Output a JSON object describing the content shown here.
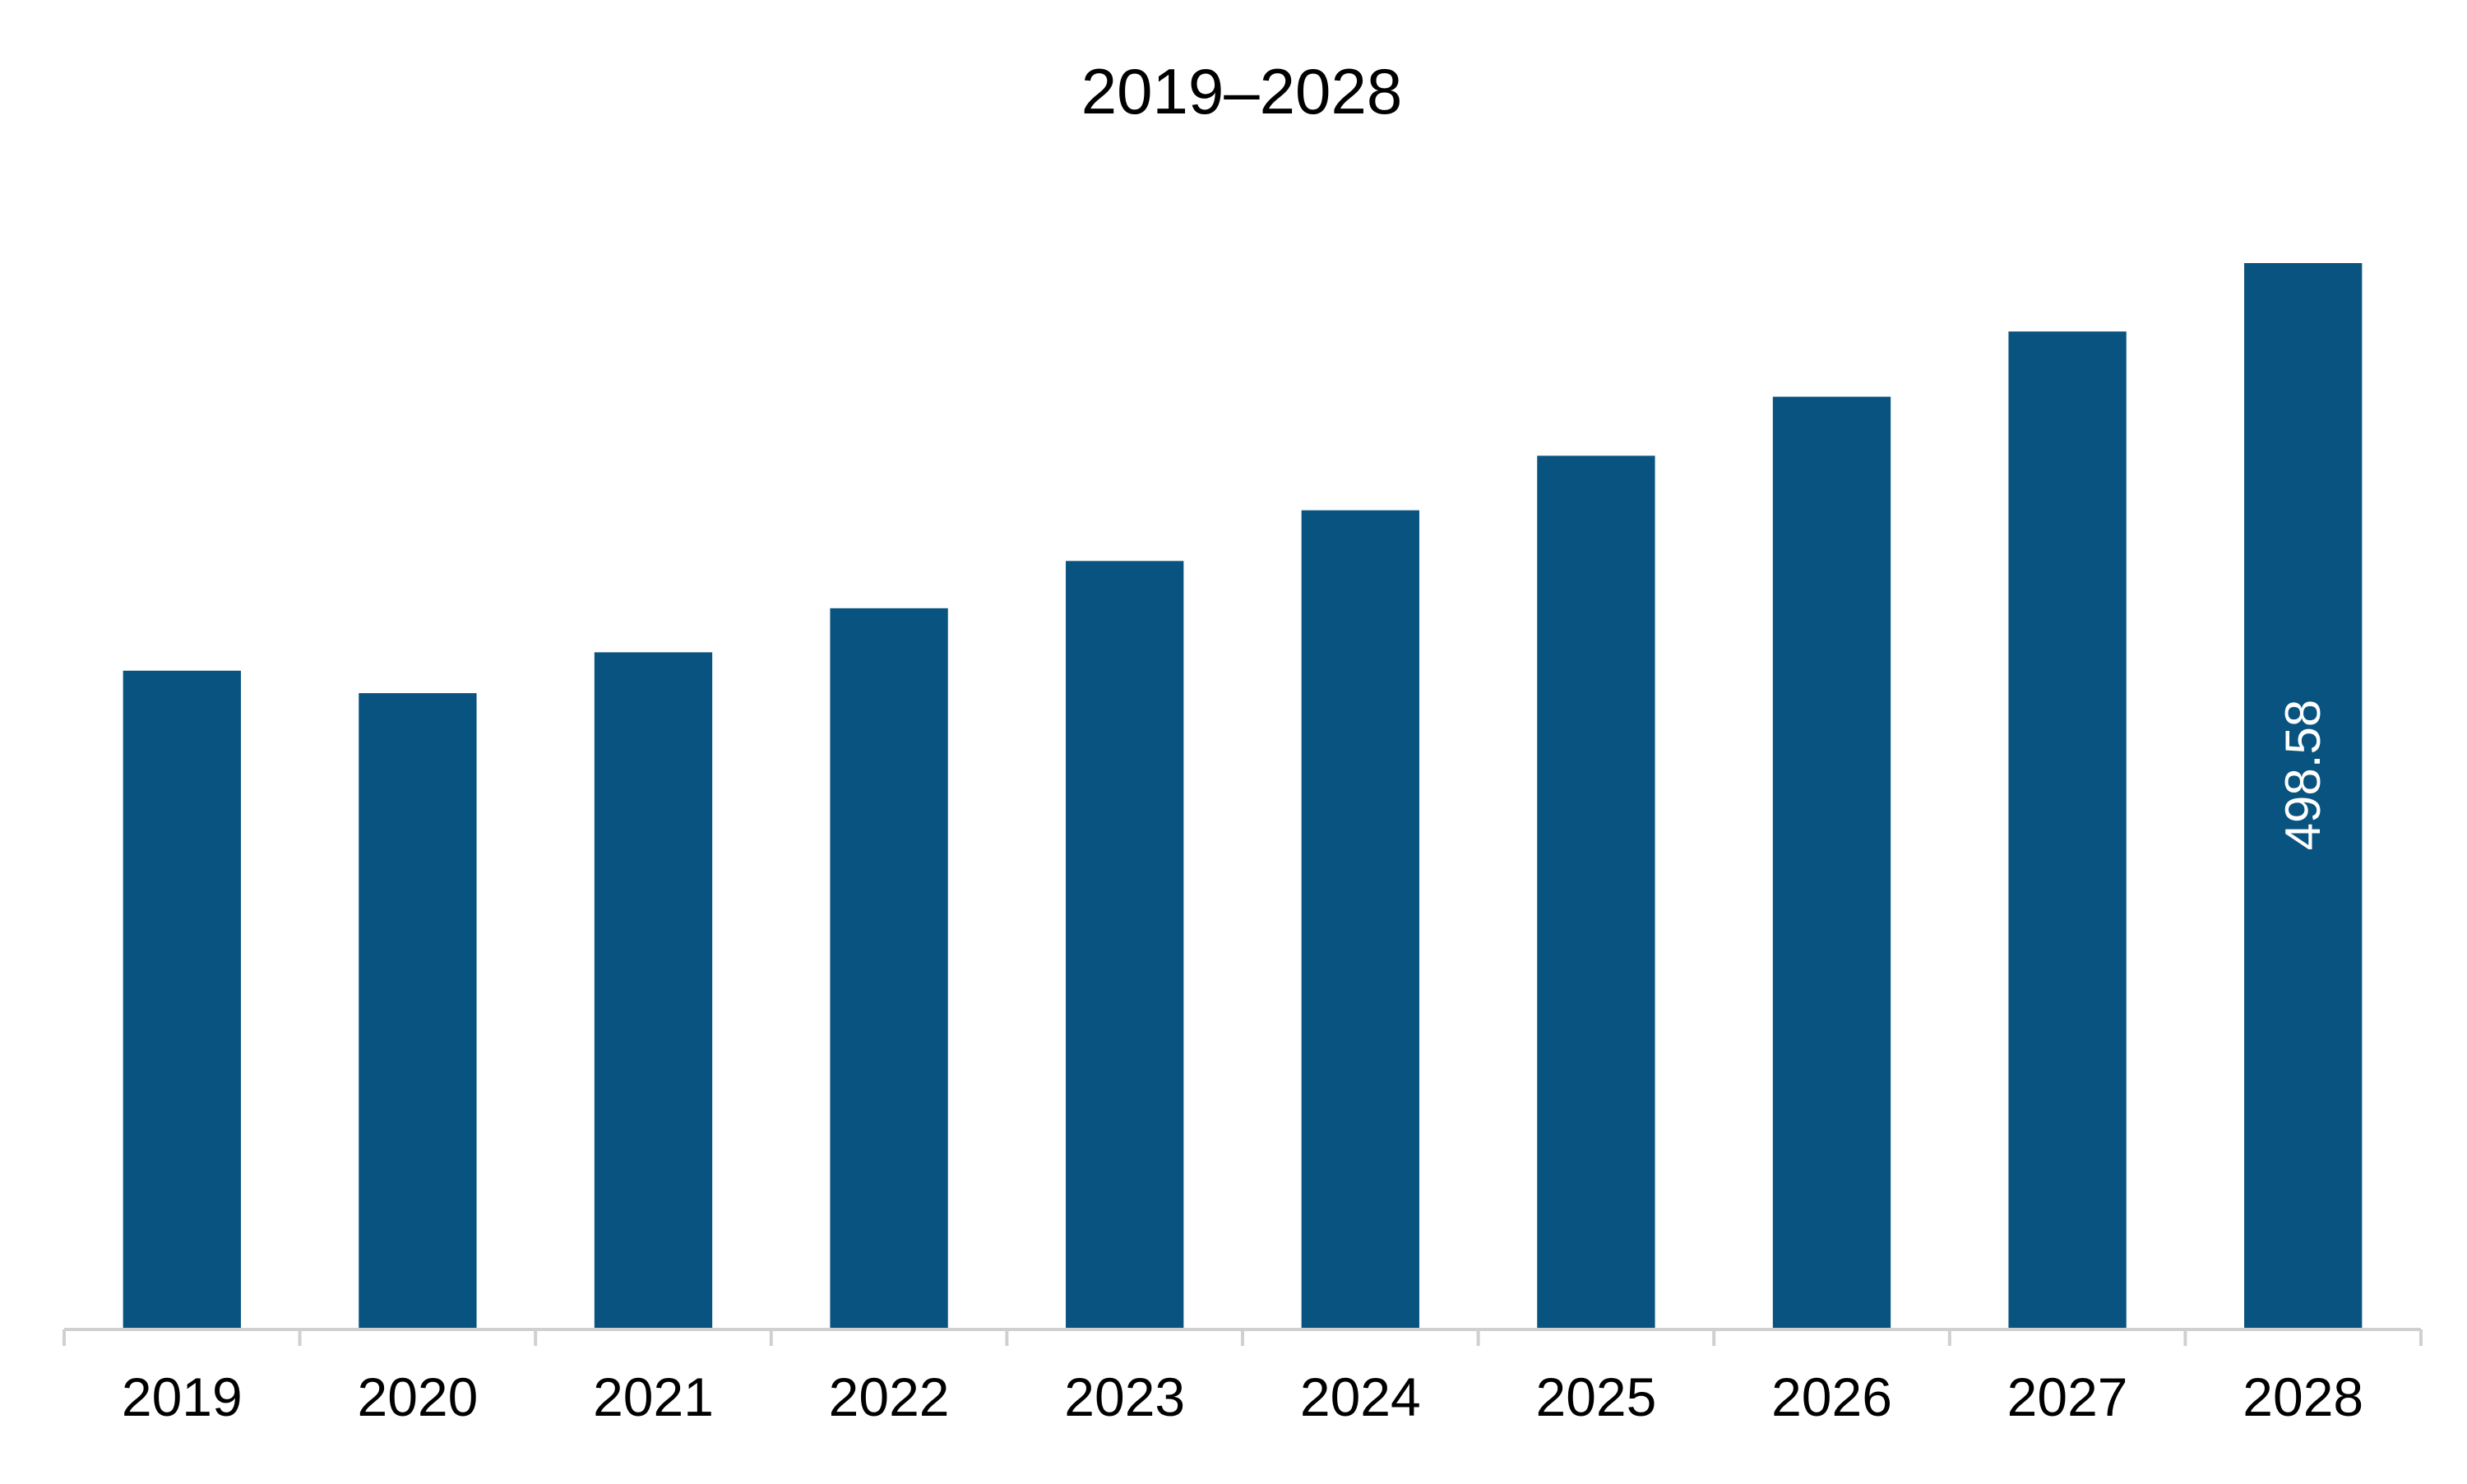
{
  "chart_data": {
    "type": "bar",
    "title": "2019–2028",
    "xlabel": "",
    "ylabel": "",
    "categories": [
      "2019",
      "2020",
      "2021",
      "2022",
      "2023",
      "2024",
      "2025",
      "2026",
      "2027",
      "2028"
    ],
    "values": [
      308.0,
      297.5,
      316.6,
      337.2,
      359.3,
      383.0,
      408.5,
      436.1,
      466.6,
      498.58
    ],
    "data_labels": [
      "",
      "",
      "",
      "",
      "",
      "",
      "",
      "",
      "",
      "498.58"
    ],
    "ylim": [
      0,
      520
    ],
    "grid": false,
    "legend": "none",
    "colors": {
      "bar": "#08537f",
      "axis": "#d0d0d0",
      "text": "#000000",
      "data_label": "#ffffff"
    }
  }
}
